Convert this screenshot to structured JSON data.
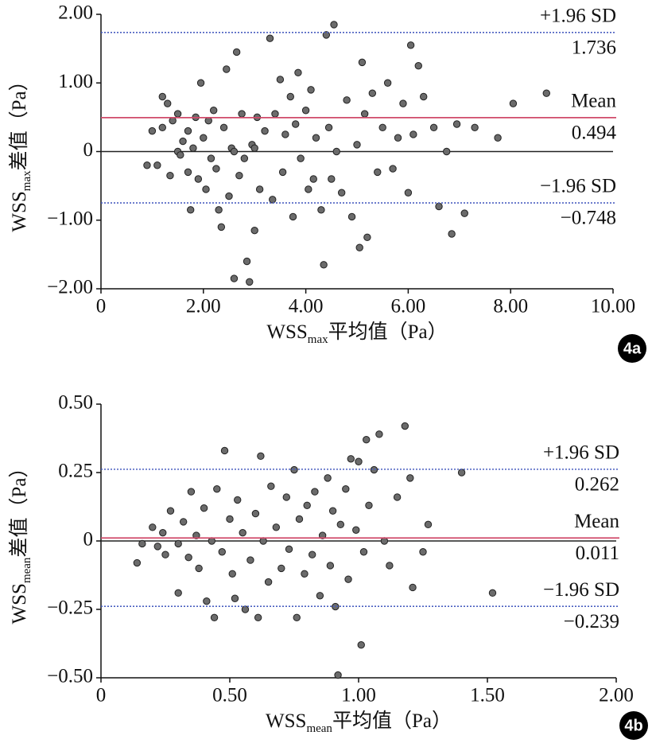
{
  "chart_data": [
    {
      "type": "scatter",
      "panel": "4a",
      "color": "#6b6b6b",
      "zero_line": true,
      "xlabel": {
        "text": "WSS",
        "sub": "max",
        "suffix": "平均值（Pa）"
      },
      "ylabel": {
        "text": "WSS",
        "sub": "max",
        "suffix": "差值（Pa）"
      },
      "xlim": [
        0,
        10
      ],
      "ylim": [
        -2,
        2
      ],
      "xticks": [
        0,
        {
          "value": 2,
          "label": "2.00"
        },
        {
          "value": 4,
          "label": "4.00"
        },
        {
          "value": 6,
          "label": "6.00"
        },
        {
          "value": 8,
          "label": "8.00"
        },
        {
          "value": 10,
          "label": "10.00"
        }
      ],
      "yticks": [
        {
          "value": -2,
          "label": "−2.00"
        },
        {
          "value": -1,
          "label": "−1.00"
        },
        0,
        {
          "value": 1,
          "label": "1.00"
        },
        {
          "value": 2,
          "label": "2.00"
        }
      ],
      "lines": [
        {
          "name": "+1.96 SD",
          "value": 1.736,
          "color": "#4a5fc0",
          "style": "dotted"
        },
        {
          "name": "Mean",
          "value": 0.494,
          "color": "#d04a6a",
          "style": "solid"
        },
        {
          "name": "−1.96 SD",
          "value": -0.748,
          "value_label": "−0.748",
          "color": "#4a5fc0",
          "style": "dotted"
        }
      ],
      "x": [
        0.9,
        1.0,
        1.1,
        1.2,
        1.2,
        1.3,
        1.35,
        1.4,
        1.5,
        1.5,
        1.55,
        1.6,
        1.7,
        1.7,
        1.75,
        1.8,
        1.85,
        1.9,
        1.95,
        2.0,
        2.05,
        2.1,
        2.15,
        2.2,
        2.25,
        2.3,
        2.35,
        2.4,
        2.45,
        2.5,
        2.55,
        2.6,
        2.6,
        2.65,
        2.7,
        2.75,
        2.8,
        2.85,
        2.9,
        2.95,
        3.0,
        3.0,
        3.05,
        3.1,
        3.2,
        3.3,
        3.35,
        3.4,
        3.5,
        3.55,
        3.6,
        3.7,
        3.75,
        3.8,
        3.85,
        3.9,
        4.0,
        4.05,
        4.1,
        4.15,
        4.2,
        4.3,
        4.35,
        4.4,
        4.45,
        4.5,
        4.55,
        4.6,
        4.7,
        4.8,
        4.9,
        5.0,
        5.05,
        5.1,
        5.15,
        5.2,
        5.3,
        5.4,
        5.5,
        5.6,
        5.7,
        5.8,
        5.9,
        6.0,
        6.05,
        6.1,
        6.2,
        6.3,
        6.5,
        6.6,
        6.75,
        6.85,
        6.95,
        7.1,
        7.3,
        7.75,
        8.05,
        8.7
      ],
      "values": [
        -0.2,
        0.3,
        -0.2,
        0.8,
        0.35,
        0.7,
        -0.35,
        0.45,
        0.0,
        0.55,
        -0.05,
        0.15,
        0.3,
        -0.3,
        -0.85,
        0.05,
        0.5,
        -0.4,
        1.0,
        0.2,
        -0.55,
        0.45,
        -0.1,
        0.6,
        -0.25,
        -0.85,
        -1.1,
        0.35,
        1.2,
        -0.65,
        0.05,
        -1.85,
        0.0,
        1.45,
        -0.35,
        0.55,
        -0.1,
        -1.6,
        -1.9,
        0.1,
        -1.15,
        0.05,
        0.5,
        -0.55,
        0.3,
        1.65,
        -0.7,
        0.55,
        1.05,
        -0.3,
        0.25,
        0.8,
        -0.95,
        0.4,
        1.15,
        -0.1,
        0.6,
        -0.55,
        0.9,
        -0.4,
        0.2,
        -0.85,
        -1.65,
        1.7,
        0.35,
        -0.4,
        1.85,
        0.0,
        -0.6,
        0.75,
        -0.95,
        0.1,
        -1.4,
        1.3,
        0.55,
        -1.25,
        0.85,
        -0.3,
        0.35,
        1.0,
        -0.25,
        0.2,
        0.7,
        -0.6,
        1.55,
        0.25,
        1.25,
        0.8,
        0.35,
        -0.8,
        0.0,
        -1.2,
        0.4,
        -0.9,
        0.35,
        0.2,
        0.7,
        0.85
      ]
    },
    {
      "type": "scatter",
      "panel": "4b",
      "color": "#6b6b6b",
      "zero_line": true,
      "xlabel": {
        "text": "WSS",
        "sub": "mean",
        "suffix": "平均值（Pa）"
      },
      "ylabel": {
        "text": "WSS",
        "sub": "mean",
        "suffix": "差值（Pa）"
      },
      "xlim": [
        0,
        2
      ],
      "ylim": [
        -0.5,
        0.5
      ],
      "xticks": [
        0,
        {
          "value": 0.5,
          "label": "0.50"
        },
        {
          "value": 1,
          "label": "1.00"
        },
        {
          "value": 1.5,
          "label": "1.50"
        },
        {
          "value": 2,
          "label": "2.00"
        }
      ],
      "yticks": [
        {
          "value": -0.5,
          "label": "−0.50"
        },
        {
          "value": -0.25,
          "label": "−0.25"
        },
        0,
        {
          "value": 0.25,
          "label": "0.25"
        },
        {
          "value": 0.5,
          "label": "0.50"
        }
      ],
      "lines": [
        {
          "name": "+1.96 SD",
          "value": 0.262,
          "color": "#4a5fc0",
          "style": "dotted"
        },
        {
          "name": "Mean",
          "value": 0.011,
          "color": "#d04a6a",
          "style": "solid"
        },
        {
          "name": "−1.96 SD",
          "value": -0.239,
          "value_label": "−0.239",
          "color": "#4a5fc0",
          "style": "dotted"
        }
      ],
      "x": [
        0.14,
        0.16,
        0.2,
        0.22,
        0.24,
        0.25,
        0.27,
        0.3,
        0.3,
        0.32,
        0.34,
        0.35,
        0.37,
        0.38,
        0.4,
        0.41,
        0.43,
        0.44,
        0.45,
        0.47,
        0.48,
        0.5,
        0.51,
        0.52,
        0.53,
        0.55,
        0.56,
        0.58,
        0.6,
        0.61,
        0.62,
        0.63,
        0.65,
        0.66,
        0.68,
        0.7,
        0.72,
        0.73,
        0.75,
        0.76,
        0.77,
        0.79,
        0.8,
        0.82,
        0.83,
        0.85,
        0.86,
        0.88,
        0.89,
        0.9,
        0.91,
        0.92,
        0.93,
        0.95,
        0.96,
        0.97,
        0.99,
        1.0,
        1.01,
        1.02,
        1.03,
        1.04,
        1.06,
        1.08,
        1.1,
        1.12,
        1.15,
        1.18,
        1.2,
        1.21,
        1.25,
        1.27,
        1.4,
        1.52
      ],
      "values": [
        -0.08,
        -0.01,
        0.05,
        -0.02,
        0.03,
        -0.05,
        0.11,
        -0.01,
        -0.19,
        0.07,
        -0.06,
        0.18,
        0.02,
        -0.1,
        0.12,
        -0.22,
        0.0,
        -0.28,
        0.19,
        -0.04,
        0.33,
        0.08,
        -0.12,
        -0.21,
        0.15,
        0.03,
        -0.25,
        -0.07,
        0.1,
        -0.28,
        0.31,
        0.0,
        -0.15,
        0.2,
        0.05,
        -0.1,
        0.16,
        -0.03,
        0.26,
        -0.28,
        0.08,
        -0.12,
        0.13,
        -0.05,
        0.18,
        -0.2,
        0.02,
        0.23,
        -0.09,
        0.11,
        -0.24,
        -0.49,
        0.06,
        0.19,
        -0.14,
        0.3,
        0.04,
        0.29,
        -0.38,
        -0.04,
        0.37,
        0.13,
        0.26,
        0.39,
        0.0,
        -0.09,
        0.16,
        0.42,
        0.23,
        -0.17,
        -0.04,
        0.06,
        0.25,
        -0.19
      ]
    }
  ]
}
